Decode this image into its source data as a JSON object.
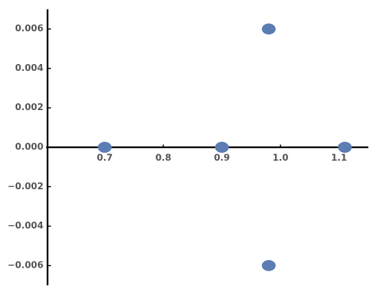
{
  "chart_data": {
    "type": "scatter",
    "series": [
      {
        "color": "#5b7db3",
        "x": [
          0.7,
          0.9,
          0.98,
          0.98,
          1.11
        ],
        "values": [
          0,
          0,
          0.006,
          -0.006,
          0
        ]
      }
    ],
    "xlim": [
      0.6,
      1.15
    ],
    "ylim": [
      -0.007,
      0.007
    ],
    "xticks": [
      0.7,
      0.8,
      0.9,
      {
        "value": 1,
        "label": "1.0"
      },
      1.1
    ],
    "yticks": [
      {
        "value": -0.006,
        "label": "−0.006"
      },
      {
        "value": -0.004,
        "label": "−0.004"
      },
      {
        "value": -0.002,
        "label": "−0.002"
      },
      {
        "value": 0,
        "label": "0.000"
      },
      0.002,
      0.004,
      0.006
    ]
  }
}
